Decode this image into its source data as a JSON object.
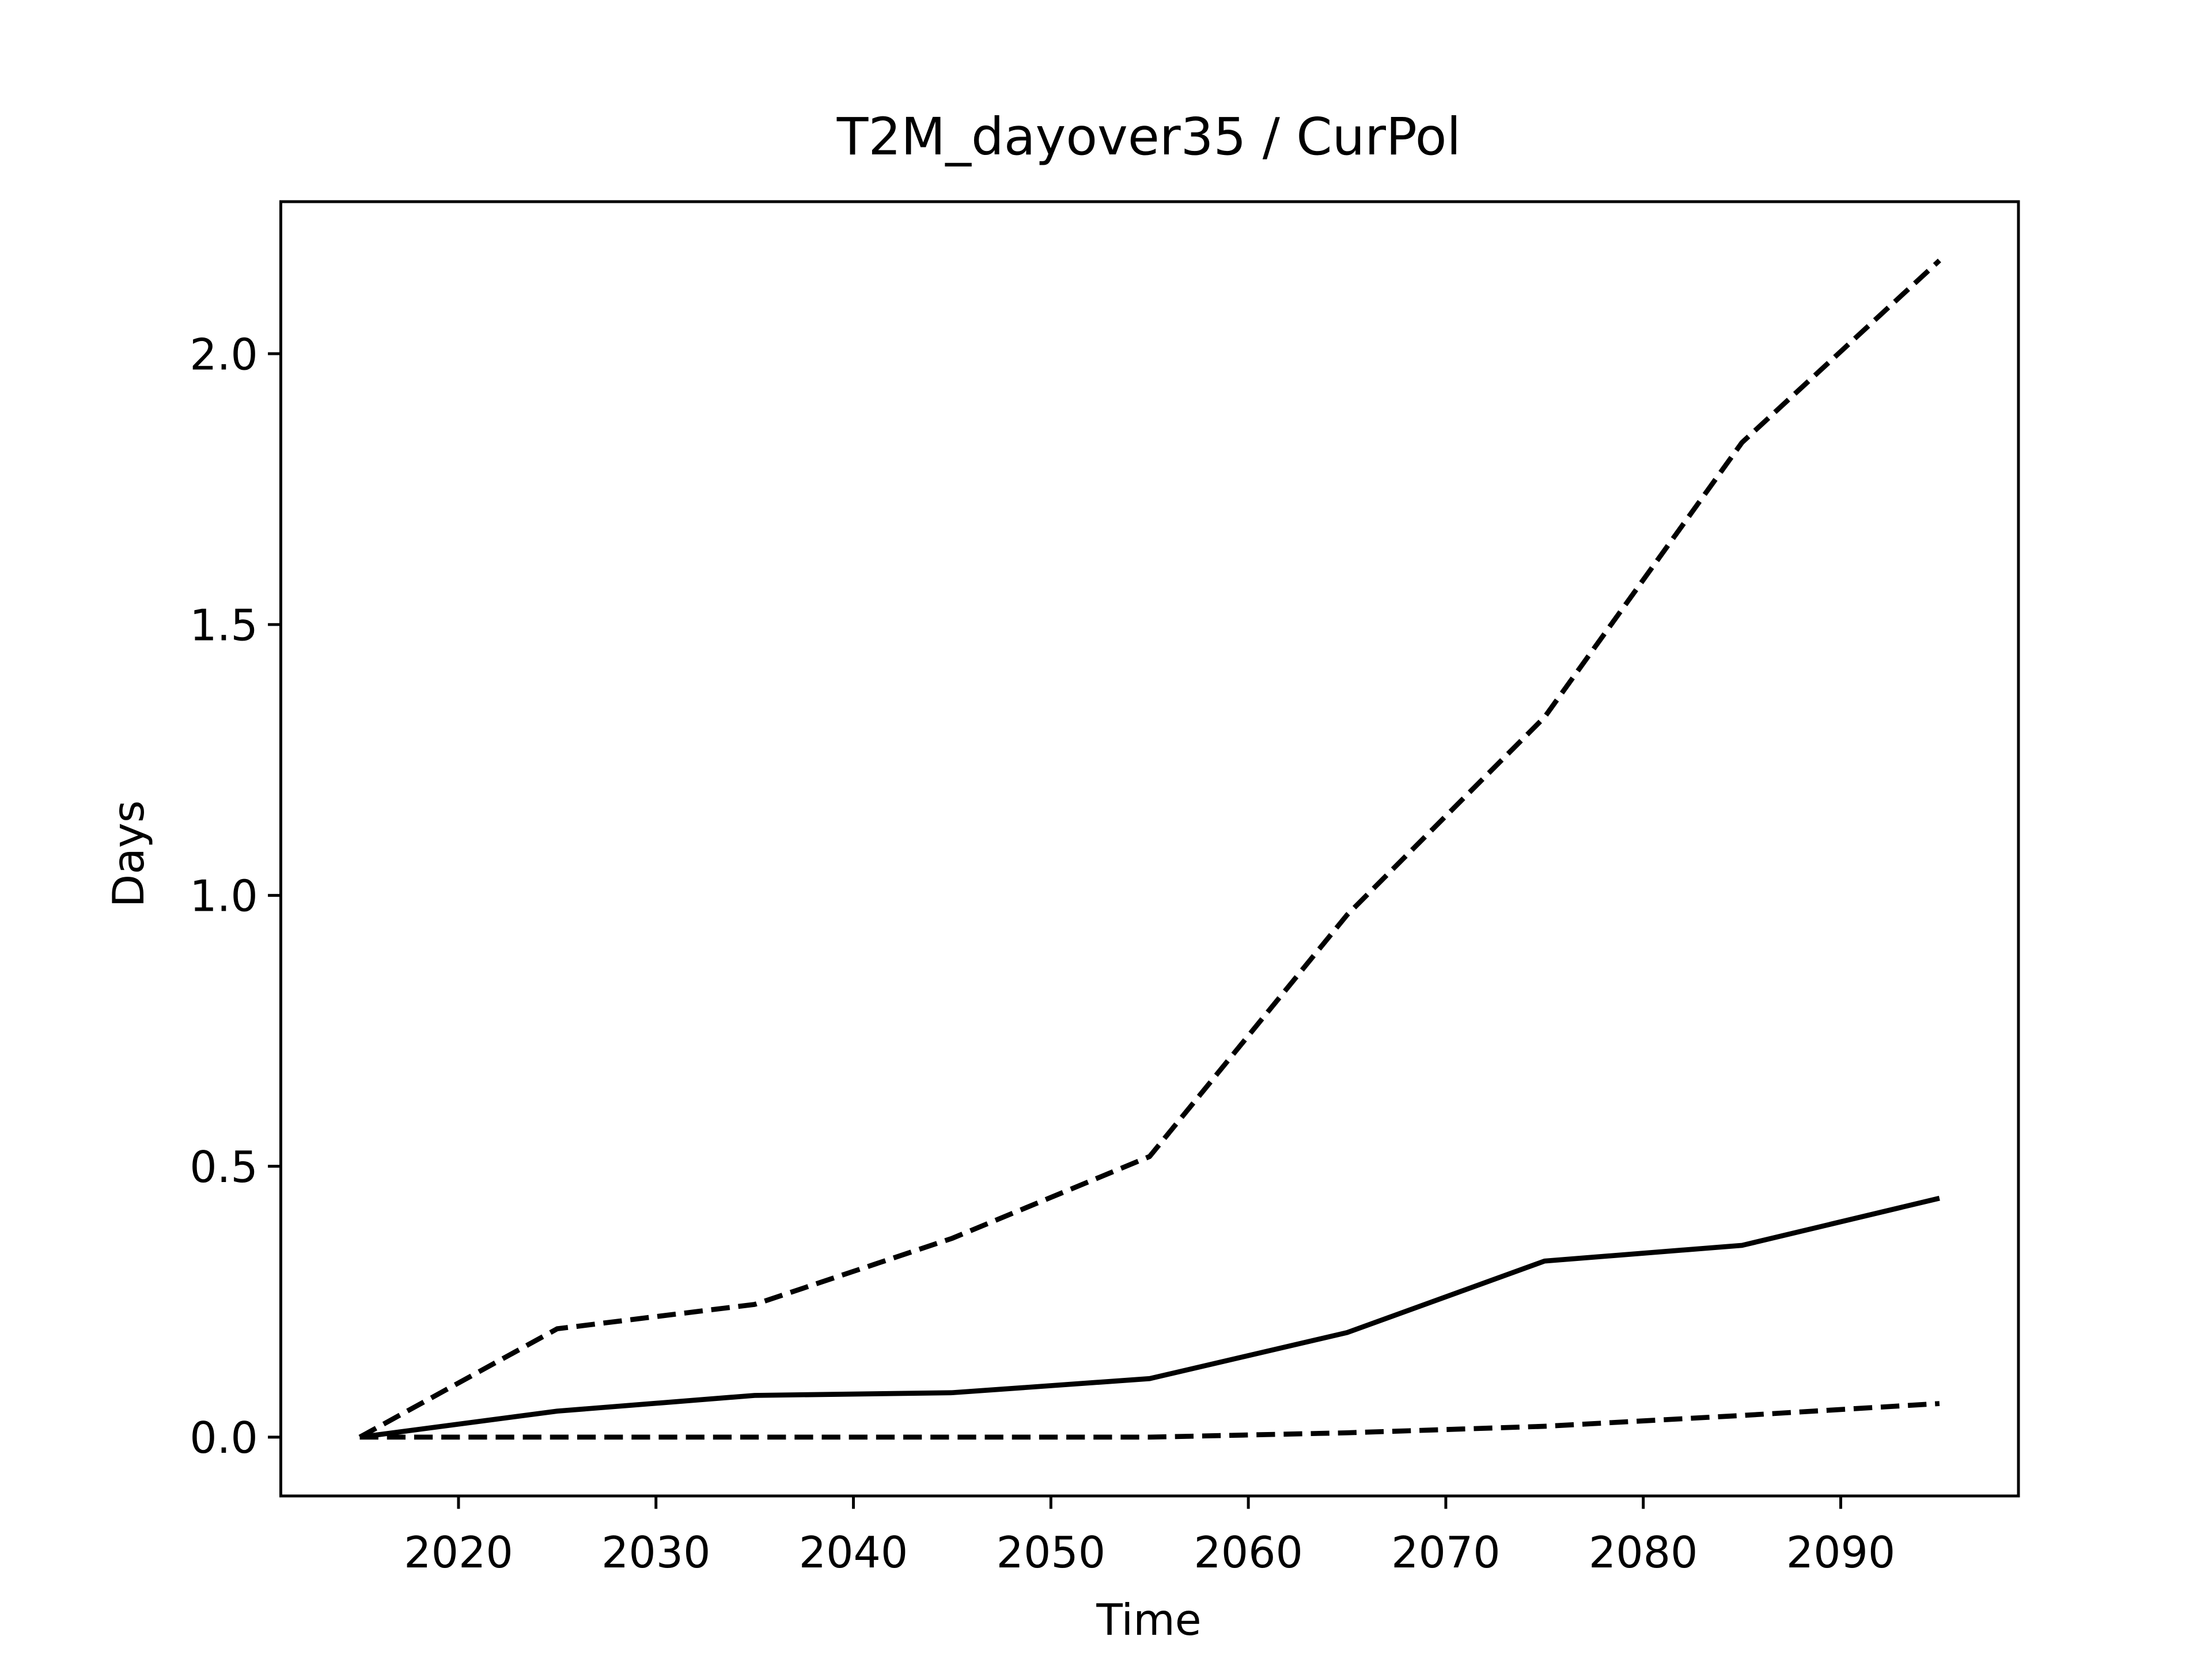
{
  "chart_data": {
    "type": "line",
    "title": "T2M_dayover35 / CurPol",
    "xlabel": "Time",
    "ylabel": "Days",
    "x": [
      2015,
      2025,
      2035,
      2045,
      2055,
      2065,
      2075,
      2085,
      2095
    ],
    "series": [
      {
        "color": "#000000",
        "linestyle": "dashed",
        "values": [
          0,
          0.2,
          0.245,
          0.367,
          0.518,
          0.964,
          1.329,
          1.836,
          2.172
        ]
      },
      {
        "color": "#000000",
        "linestyle": "solid",
        "values": [
          0,
          0.048,
          0.077,
          0.082,
          0.108,
          0.193,
          0.325,
          0.354,
          0.441
        ]
      },
      {
        "color": "#000000",
        "linestyle": "dashed",
        "values": [
          0,
          0,
          0,
          0,
          0,
          0.008,
          0.02,
          0.04,
          0.062
        ]
      }
    ],
    "xlim": [
      2011,
      2099
    ],
    "xticks": [
      2020,
      2030,
      2040,
      2050,
      2060,
      2070,
      2080,
      2090
    ],
    "ylim": [
      -0.1086,
      2.2806
    ],
    "yticks": [
      {
        "value": 0,
        "label": "0.0"
      },
      0.5,
      {
        "value": 1,
        "label": "1.0"
      },
      1.5,
      {
        "value": 2,
        "label": "2.0"
      }
    ],
    "grid": false
  }
}
